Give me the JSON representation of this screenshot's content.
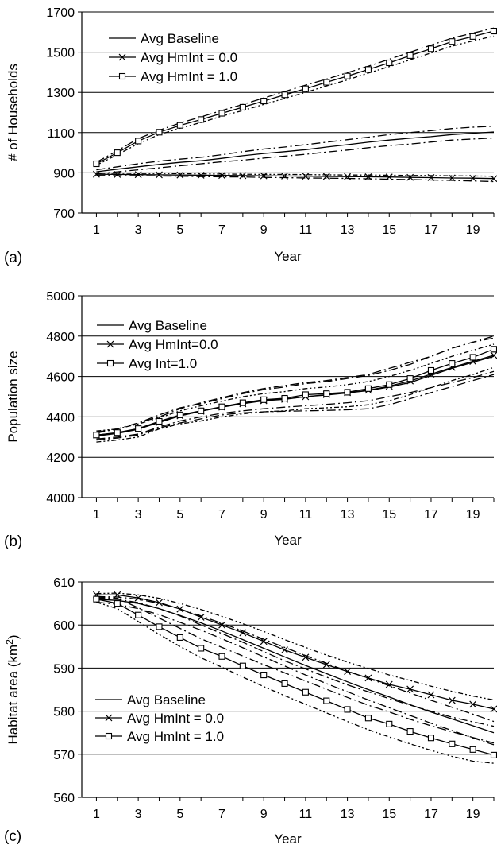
{
  "chart_data": [
    {
      "panel_label": "(a)",
      "type": "line",
      "xlabel": "Year",
      "ylabel": "# of Households",
      "ylim": [
        700,
        1700
      ],
      "yticks": [
        700,
        900,
        1100,
        1300,
        1500,
        1700
      ],
      "xlim": [
        0.3,
        20
      ],
      "xticks": [
        1,
        3,
        5,
        7,
        9,
        11,
        13,
        15,
        17,
        19
      ],
      "grid": "horizontal",
      "legend_position": "top-left",
      "legend": [
        "Avg Baseline",
        "Avg HmInt = 0.0",
        "Avg HmInt = 1.0"
      ],
      "x": [
        1,
        2,
        3,
        4,
        5,
        6,
        7,
        8,
        9,
        10,
        11,
        12,
        13,
        14,
        15,
        16,
        17,
        18,
        19,
        20
      ],
      "series": [
        {
          "name": "Avg Baseline",
          "marker": "none",
          "values": [
            905,
            918,
            930,
            942,
            952,
            960,
            972,
            985,
            996,
            1005,
            1015,
            1028,
            1040,
            1052,
            1063,
            1072,
            1080,
            1090,
            1097,
            1103
          ],
          "bounds": [
            [
              895,
              905,
              915,
              925,
              935,
              945,
              955,
              963,
              973,
              983,
              992,
              1003,
              1013,
              1025,
              1035,
              1043,
              1053,
              1063,
              1068,
              1073
            ],
            [
              915,
              930,
              945,
              958,
              968,
              977,
              990,
              1005,
              1018,
              1028,
              1040,
              1052,
              1065,
              1077,
              1090,
              1100,
              1110,
              1120,
              1127,
              1132
            ]
          ]
        },
        {
          "name": "Avg HmInt = 0.0",
          "marker": "x",
          "values": [
            893,
            892,
            891,
            890,
            889,
            888,
            887,
            886,
            885,
            884,
            883,
            882,
            881,
            880,
            879,
            877,
            876,
            874,
            873,
            871
          ],
          "bounds": [
            [
              887,
              886,
              885,
              884,
              883,
              881,
              880,
              879,
              877,
              876,
              874,
              873,
              872,
              870,
              868,
              866,
              864,
              862,
              859,
              856
            ],
            [
              898,
              898,
              897,
              897,
              896,
              895,
              894,
              893,
              892,
              892,
              891,
              890,
              889,
              889,
              888,
              887,
              886,
              885,
              884,
              883
            ]
          ]
        },
        {
          "name": "Avg HmInt = 1.0",
          "marker": "square",
          "values": [
            945,
            1000,
            1058,
            1102,
            1136,
            1165,
            1196,
            1226,
            1257,
            1288,
            1318,
            1350,
            1381,
            1414,
            1447,
            1483,
            1517,
            1553,
            1578,
            1605
          ],
          "bounds": [
            [
              938,
              990,
              1045,
              1090,
              1122,
              1150,
              1182,
              1210,
              1240,
              1270,
              1300,
              1332,
              1362,
              1396,
              1428,
              1462,
              1496,
              1530,
              1556,
              1580
            ],
            [
              952,
              1010,
              1070,
              1112,
              1148,
              1178,
              1210,
              1240,
              1272,
              1304,
              1336,
              1366,
              1398,
              1430,
              1465,
              1500,
              1535,
              1570,
              1595,
              1620
            ]
          ]
        }
      ]
    },
    {
      "panel_label": "(b)",
      "type": "line",
      "xlabel": "Year",
      "ylabel": "Population size",
      "ylim": [
        4000,
        5000
      ],
      "yticks": [
        4000,
        4200,
        4400,
        4600,
        4800,
        5000
      ],
      "xlim": [
        0.3,
        20
      ],
      "xticks": [
        1,
        3,
        5,
        7,
        9,
        11,
        13,
        15,
        17,
        19
      ],
      "grid": "horizontal",
      "legend_position": "top-left",
      "legend": [
        "Avg Baseline",
        "Avg HmInt=0.0",
        "Avg Int=1.0"
      ],
      "x": [
        1,
        2,
        3,
        4,
        5,
        6,
        7,
        8,
        9,
        10,
        11,
        12,
        13,
        14,
        15,
        16,
        17,
        18,
        19,
        20
      ],
      "series": [
        {
          "name": "Avg Baseline",
          "marker": "none",
          "values": [
            4305,
            4318,
            4338,
            4375,
            4405,
            4428,
            4450,
            4468,
            4482,
            4488,
            4500,
            4508,
            4518,
            4530,
            4548,
            4570,
            4605,
            4640,
            4670,
            4700
          ],
          "bounds": [
            [
              4285,
              4295,
              4310,
              4345,
              4370,
              4390,
              4410,
              4420,
              4425,
              4428,
              4430,
              4432,
              4435,
              4440,
              4460,
              4490,
              4520,
              4550,
              4580,
              4610
            ],
            [
              4320,
              4340,
              4370,
              4400,
              4440,
              4470,
              4495,
              4520,
              4540,
              4555,
              4570,
              4580,
              4595,
              4610,
              4640,
              4670,
              4700,
              4740,
              4770,
              4800
            ]
          ]
        },
        {
          "name": "Avg HmInt=0.0",
          "marker": "x",
          "values": [
            4310,
            4320,
            4340,
            4372,
            4405,
            4428,
            4448,
            4465,
            4480,
            4487,
            4500,
            4510,
            4520,
            4532,
            4552,
            4578,
            4612,
            4645,
            4675,
            4705
          ],
          "bounds": [
            [
              4290,
              4300,
              4315,
              4350,
              4380,
              4400,
              4418,
              4430,
              4440,
              4448,
              4455,
              4462,
              4470,
              4480,
              4500,
              4520,
              4545,
              4570,
              4595,
              4625
            ],
            [
              4330,
              4340,
              4365,
              4395,
              4430,
              4455,
              4478,
              4500,
              4515,
              4525,
              4540,
              4548,
              4560,
              4575,
              4600,
              4630,
              4665,
              4700,
              4730,
              4760
            ]
          ]
        },
        {
          "name": "Avg Int=1.0",
          "marker": "square",
          "values": [
            4310,
            4322,
            4342,
            4378,
            4410,
            4430,
            4450,
            4470,
            4485,
            4492,
            4510,
            4515,
            4522,
            4540,
            4560,
            4590,
            4630,
            4665,
            4695,
            4735
          ],
          "bounds": [
            [
              4275,
              4285,
              4300,
              4340,
              4365,
              4380,
              4400,
              4415,
              4425,
              4430,
              4440,
              4445,
              4450,
              4460,
              4480,
              4510,
              4545,
              4580,
              4610,
              4645
            ],
            [
              4325,
              4340,
              4370,
              4410,
              4445,
              4465,
              4490,
              4515,
              4535,
              4548,
              4565,
              4575,
              4590,
              4605,
              4630,
              4660,
              4700,
              4740,
              4770,
              4790
            ]
          ]
        }
      ]
    },
    {
      "panel_label": "(c)",
      "type": "line",
      "xlabel": "Year",
      "ylabel": "Habitat area (km",
      "ylabel_sup": "2",
      "ylabel_close": ")",
      "ylim": [
        560,
        610
      ],
      "yticks": [
        560,
        570,
        580,
        590,
        600,
        610
      ],
      "xlim": [
        0.3,
        20
      ],
      "xticks": [
        1,
        3,
        5,
        7,
        9,
        11,
        13,
        15,
        17,
        19
      ],
      "grid": "horizontal",
      "legend_position": "bottom-left",
      "legend": [
        "Avg Baseline",
        "Avg HmInt = 0.0",
        "Avg HmInt = 1.0"
      ],
      "x": [
        1,
        2,
        3,
        4,
        5,
        6,
        7,
        8,
        9,
        10,
        11,
        12,
        13,
        14,
        15,
        16,
        17,
        18,
        19,
        20
      ],
      "series": [
        {
          "name": "Avg Baseline",
          "marker": "none",
          "values": [
            606,
            605.7,
            605,
            603.8,
            602.2,
            600.5,
            598.6,
            596.6,
            594.6,
            592.6,
            590.6,
            588.7,
            586.8,
            585,
            583.3,
            581.5,
            579.8,
            578.2,
            576.6,
            575
          ],
          "bounds": [
            [
              605.3,
              604.8,
              603.8,
              602.4,
              600.6,
              598.8,
              596.8,
              594.7,
              592.6,
              590.5,
              588.4,
              586.4,
              584.5,
              582.6,
              580.8,
              579,
              577.2,
              575.5,
              573.8,
              572.2
            ],
            [
              606.6,
              606.5,
              606,
              605,
              603.7,
              602.1,
              600.4,
              598.6,
              596.7,
              594.8,
              592.9,
              591.1,
              589.3,
              587.6,
              585.9,
              584.2,
              582.5,
              580.9,
              579.3,
              577.6
            ]
          ]
        },
        {
          "name": "Avg HmInt = 0.0",
          "marker": "x",
          "values": [
            607,
            607,
            606.3,
            605.2,
            603.7,
            601.8,
            600,
            598.2,
            596.2,
            594.2,
            592.5,
            590.8,
            589.2,
            587.7,
            586.2,
            585.1,
            583.8,
            582.5,
            581.6,
            580.5
          ],
          "bounds": [
            [
              606.3,
              606,
              605.2,
              603.8,
              602.1,
              600,
              598,
              596,
              593.8,
              591.7,
              589.8,
              587.9,
              586.1,
              584.5,
              582.9,
              581.4,
              580,
              578.6,
              577.5,
              576.5
            ],
            [
              607.3,
              607.4,
              607,
              606.2,
              605,
              603.6,
              602,
              600.3,
              598.5,
              596.6,
              594.8,
              593,
              591.4,
              589.9,
              588.4,
              587.1,
              585.8,
              584.6,
              583.5,
              582.6
            ]
          ]
        },
        {
          "name": "Avg HmInt = 1.0",
          "marker": "square",
          "values": [
            606,
            605,
            602.3,
            599.6,
            597.1,
            594.6,
            592.7,
            590.5,
            588.4,
            586.4,
            584.4,
            582.4,
            580.4,
            578.4,
            577,
            575.3,
            573.8,
            572.4,
            571.1,
            569.8
          ],
          "bounds": [
            [
              605.3,
              603.8,
              600.8,
              597.8,
              595,
              592.4,
              590.2,
              587.9,
              585.7,
              583.6,
              581.6,
              579.6,
              577.6,
              575.7,
              574,
              572.4,
              570.9,
              569.5,
              568.4,
              567.9
            ],
            [
              606.5,
              606.2,
              604,
              601.6,
              599.2,
              596.8,
              594.8,
              592.8,
              590.8,
              588.9,
              587,
              585.1,
              583.2,
              581.4,
              579.8,
              578.1,
              576.6,
              575.2,
              573.9,
              572.6
            ]
          ]
        }
      ]
    }
  ]
}
